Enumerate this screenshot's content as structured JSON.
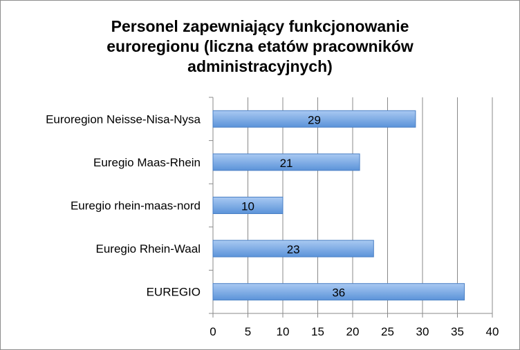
{
  "chart_data": {
    "type": "bar",
    "orientation": "horizontal",
    "title_lines": [
      "Personel zapewniający funkcjonowanie",
      "euroregionu (liczna etatów pracowników",
      "administracyjnych)"
    ],
    "categories": [
      "Euroregion Neisse-Nisa-Nysa",
      "Euregio Maas-Rhein",
      "Euregio rhein-maas-nord",
      "Euregio Rhein-Waal",
      "EUREGIO"
    ],
    "values": [
      29,
      21,
      10,
      23,
      36
    ],
    "xlim": [
      0,
      40
    ],
    "xticks": [
      0,
      5,
      10,
      15,
      20,
      25,
      30,
      35,
      40
    ],
    "grid": "vertical",
    "legend": "none",
    "data_labels": true,
    "colors": {
      "bar_top": "#a9c9f2",
      "bar_bottom": "#5b93d9",
      "bar_stroke": "#4a7fc4",
      "grid": "#888888",
      "frame": "#8c8c8c"
    }
  }
}
